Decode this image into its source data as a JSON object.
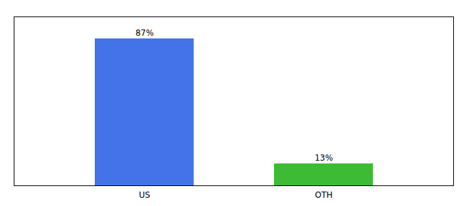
{
  "chart_data": {
    "type": "bar",
    "categories": [
      "US",
      "OTH"
    ],
    "values": [
      87,
      13
    ],
    "value_labels": [
      "87%",
      "13%"
    ],
    "colors": [
      "#4472e8",
      "#3dbb35"
    ],
    "ylim": [
      0,
      100
    ],
    "data_labels": true,
    "tick_labels": "x"
  }
}
